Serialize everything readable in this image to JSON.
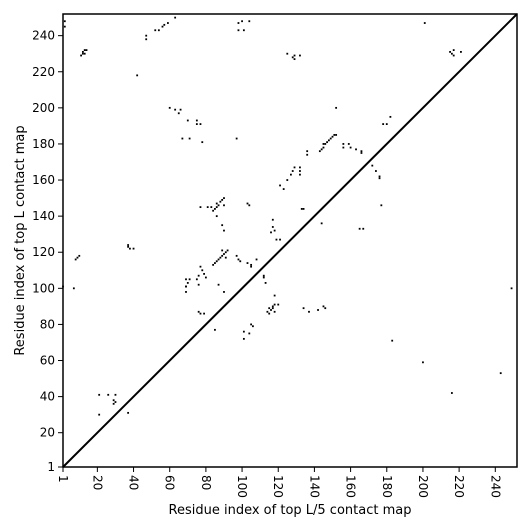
{
  "chart_data": {
    "type": "scatter",
    "title": "",
    "xlabel": "Residue index of top L/5 contact map",
    "ylabel": "Residue index of top L contact map",
    "xlim": [
      1,
      252
    ],
    "ylim": [
      1,
      252
    ],
    "x_ticks": [
      1,
      20,
      40,
      60,
      80,
      100,
      120,
      140,
      160,
      180,
      200,
      220,
      240
    ],
    "y_ticks": [
      1,
      20,
      40,
      60,
      80,
      100,
      120,
      140,
      160,
      180,
      200,
      220,
      240
    ],
    "x_tick_labels": [
      "1",
      "20",
      "40",
      "60",
      "80",
      "100",
      "120",
      "140",
      "160",
      "180",
      "200",
      "220",
      "240"
    ],
    "y_tick_labels": [
      "1",
      "20",
      "40",
      "60",
      "80",
      "100",
      "120",
      "140",
      "160",
      "180",
      "200",
      "220",
      "240"
    ],
    "x_tick_rotation": -90,
    "diagonal": true,
    "grid": false,
    "marker_color": "#000000",
    "upper_triangle_points": [
      [
        2,
        248
      ],
      [
        2,
        245
      ],
      [
        11,
        229
      ],
      [
        12,
        230
      ],
      [
        12,
        231
      ],
      [
        13,
        232
      ],
      [
        14,
        232
      ],
      [
        13,
        230
      ],
      [
        47,
        240
      ],
      [
        47,
        238
      ],
      [
        52,
        243
      ],
      [
        54,
        243
      ],
      [
        56,
        245
      ],
      [
        57,
        246
      ],
      [
        59,
        247
      ],
      [
        63,
        250
      ],
      [
        98,
        247
      ],
      [
        98,
        243
      ],
      [
        100,
        248
      ],
      [
        101,
        243
      ],
      [
        104,
        248
      ],
      [
        42,
        218
      ],
      [
        60,
        200
      ],
      [
        63,
        199
      ],
      [
        65,
        197
      ],
      [
        66,
        199
      ],
      [
        67,
        183
      ],
      [
        71,
        183
      ],
      [
        70,
        193
      ],
      [
        75,
        193
      ],
      [
        77,
        191
      ],
      [
        75,
        191
      ],
      [
        78,
        181
      ],
      [
        97,
        183
      ],
      [
        125,
        230
      ],
      [
        128,
        228
      ],
      [
        129,
        227
      ],
      [
        129,
        229
      ],
      [
        132,
        229
      ],
      [
        121,
        157
      ],
      [
        123,
        155
      ],
      [
        125,
        160
      ],
      [
        127,
        163
      ],
      [
        128,
        165
      ],
      [
        129,
        167
      ],
      [
        132,
        163
      ],
      [
        132,
        165
      ],
      [
        132,
        167
      ],
      [
        136,
        174
      ],
      [
        136,
        176
      ],
      [
        143,
        176
      ],
      [
        144,
        177
      ],
      [
        145,
        178
      ],
      [
        145,
        180
      ],
      [
        146,
        180
      ],
      [
        147,
        181
      ],
      [
        148,
        182
      ],
      [
        149,
        183
      ],
      [
        150,
        184
      ],
      [
        151,
        185
      ],
      [
        152,
        185
      ],
      [
        152,
        200
      ],
      [
        156,
        180
      ],
      [
        156,
        178
      ],
      [
        159,
        180
      ],
      [
        160,
        178
      ],
      [
        163,
        177
      ],
      [
        166,
        175
      ],
      [
        166,
        176
      ],
      [
        172,
        168
      ],
      [
        174,
        165
      ],
      [
        176,
        162
      ],
      [
        176,
        161
      ],
      [
        178,
        191
      ],
      [
        180,
        191
      ],
      [
        182,
        195
      ],
      [
        201,
        247
      ],
      [
        215,
        231
      ],
      [
        216,
        230
      ],
      [
        217,
        229
      ],
      [
        217,
        232
      ],
      [
        221,
        231
      ]
    ],
    "lower_triangle_points": [
      [
        8,
        116
      ],
      [
        9,
        117
      ],
      [
        10,
        118
      ],
      [
        7,
        100
      ],
      [
        1,
        101
      ],
      [
        21,
        41
      ],
      [
        21,
        30
      ],
      [
        26,
        41
      ],
      [
        29,
        38
      ],
      [
        29,
        36
      ],
      [
        30,
        41
      ],
      [
        30,
        37
      ],
      [
        37,
        31
      ],
      [
        37,
        124
      ],
      [
        37,
        123
      ],
      [
        38,
        122
      ],
      [
        40,
        122
      ],
      [
        69,
        105
      ],
      [
        69,
        101
      ],
      [
        69,
        98
      ],
      [
        69,
        101
      ],
      [
        70,
        103
      ],
      [
        71,
        105
      ],
      [
        75,
        105
      ],
      [
        76,
        102
      ],
      [
        76,
        107
      ],
      [
        78,
        110
      ],
      [
        77,
        112
      ],
      [
        79,
        108
      ],
      [
        80,
        106
      ],
      [
        77,
        145
      ],
      [
        81,
        145
      ],
      [
        83,
        145
      ],
      [
        84,
        143
      ],
      [
        85,
        144
      ],
      [
        86,
        145
      ],
      [
        87,
        146
      ],
      [
        88,
        148
      ],
      [
        89,
        149
      ],
      [
        90,
        150
      ],
      [
        90,
        146
      ],
      [
        84,
        113
      ],
      [
        85,
        114
      ],
      [
        86,
        115
      ],
      [
        87,
        116
      ],
      [
        88,
        117
      ],
      [
        89,
        118
      ],
      [
        90,
        119
      ],
      [
        91,
        120
      ],
      [
        92,
        121
      ],
      [
        89,
        121
      ],
      [
        91,
        117
      ],
      [
        86,
        140
      ],
      [
        89,
        135
      ],
      [
        90,
        132
      ],
      [
        86,
        147
      ],
      [
        76,
        87
      ],
      [
        77,
        86
      ],
      [
        79,
        86
      ],
      [
        85,
        77
      ],
      [
        87,
        102
      ],
      [
        90,
        98
      ],
      [
        97,
        118
      ],
      [
        98,
        116
      ],
      [
        99,
        115
      ],
      [
        103,
        114
      ],
      [
        105,
        113
      ],
      [
        105,
        112
      ],
      [
        108,
        116
      ],
      [
        112,
        107
      ],
      [
        101,
        76
      ],
      [
        101,
        72
      ],
      [
        104,
        75
      ],
      [
        105,
        80
      ],
      [
        106,
        79
      ],
      [
        103,
        147
      ],
      [
        104,
        146
      ],
      [
        112,
        106
      ],
      [
        113,
        103
      ],
      [
        114,
        87
      ],
      [
        115,
        86
      ],
      [
        115,
        89
      ],
      [
        116,
        88
      ],
      [
        117,
        90
      ],
      [
        118,
        91
      ],
      [
        117,
        89
      ],
      [
        118,
        87
      ],
      [
        116,
        131
      ],
      [
        117,
        138
      ],
      [
        117,
        134
      ],
      [
        118,
        132
      ],
      [
        119,
        127
      ],
      [
        121,
        127
      ],
      [
        120,
        91
      ],
      [
        118,
        96
      ],
      [
        133,
        144
      ],
      [
        134,
        144
      ],
      [
        134,
        89
      ],
      [
        137,
        87
      ],
      [
        142,
        88
      ],
      [
        144,
        136
      ],
      [
        145,
        90
      ],
      [
        146,
        89
      ],
      [
        165,
        133
      ],
      [
        167,
        133
      ],
      [
        177,
        146
      ],
      [
        183,
        71
      ],
      [
        200,
        59
      ],
      [
        216,
        42
      ],
      [
        243,
        53
      ],
      [
        249,
        100
      ]
    ]
  }
}
